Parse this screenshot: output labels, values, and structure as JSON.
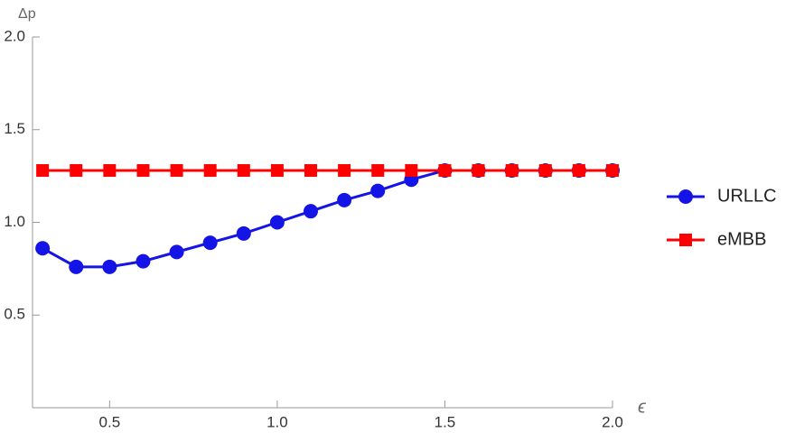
{
  "chart_data": {
    "type": "line",
    "x_label": "ϵ",
    "y_label": "Δp",
    "x": [
      0.3,
      0.4,
      0.5,
      0.6,
      0.7,
      0.8,
      0.9,
      1.0,
      1.1,
      1.2,
      1.3,
      1.4,
      1.5,
      1.6,
      1.7,
      1.8,
      1.9,
      2.0
    ],
    "series": [
      {
        "name": "URLLC",
        "color": "#1414e6",
        "marker": "circle",
        "values": [
          0.86,
          0.76,
          0.76,
          0.79,
          0.84,
          0.89,
          0.94,
          1.0,
          1.06,
          1.12,
          1.17,
          1.23,
          1.28,
          1.28,
          1.28,
          1.28,
          1.28,
          1.28
        ]
      },
      {
        "name": "eMBB",
        "color": "#ff0000",
        "marker": "square",
        "values": [
          1.28,
          1.28,
          1.28,
          1.28,
          1.28,
          1.28,
          1.28,
          1.28,
          1.28,
          1.28,
          1.28,
          1.28,
          1.28,
          1.28,
          1.28,
          1.28,
          1.28,
          1.28
        ]
      }
    ],
    "xlim": [
      0.27,
      2.0
    ],
    "ylim": [
      0,
      2.0
    ],
    "xticks": [
      0.5,
      {
        "value": 1,
        "label": "1.0"
      },
      1.5,
      {
        "value": 2,
        "label": "2.0"
      }
    ],
    "yticks": [
      0.5,
      {
        "value": 1,
        "label": "1.0"
      },
      1.5,
      {
        "value": 2,
        "label": "2.0"
      }
    ],
    "grid": false,
    "legend": "right"
  }
}
